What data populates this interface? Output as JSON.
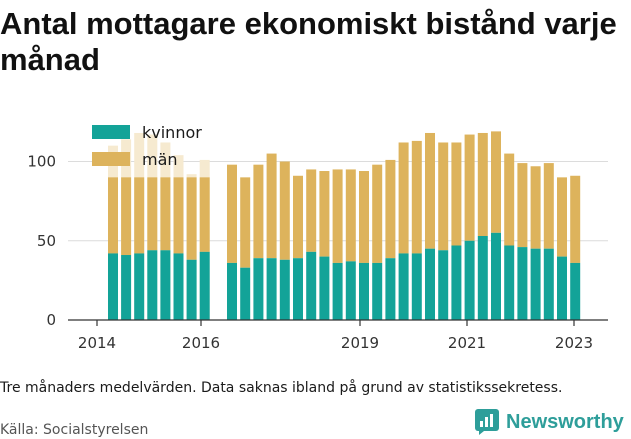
{
  "title": "Antal mottagare ekonomiskt bistånd varje månad",
  "note": "Tre månaders medelvärden. Data saknas ibland på grund av statistikssekretess.",
  "source": "Källa: Socialstyrelsen",
  "brand": "Newsworthy",
  "colors": {
    "kvinnor": "#13a398",
    "man": "#ddb35c",
    "faded": "#f6ead0",
    "grid": "#dcdcdc",
    "axis": "#333333",
    "brand": "#2e9e9a"
  },
  "chart_data": {
    "type": "bar",
    "stacked": true,
    "ylim": [
      0,
      130
    ],
    "yticks": [
      0,
      50,
      100
    ],
    "x_tick_labels": [
      "2014",
      "2016",
      "2019",
      "2021",
      "2023"
    ],
    "legend_position": "top-left",
    "grid": true,
    "series": [
      {
        "name": "kvinnor",
        "values": [
          42,
          41,
          42,
          44,
          44,
          42,
          38,
          43,
          36,
          33,
          39,
          39,
          38,
          39,
          43,
          40,
          36,
          37,
          36,
          36,
          39,
          42,
          42,
          45,
          44,
          47,
          50,
          53,
          55,
          47,
          46,
          45,
          45,
          40,
          36
        ]
      },
      {
        "name": "män",
        "values": [
          48,
          49,
          48,
          46,
          46,
          48,
          52,
          47,
          62,
          57,
          59,
          66,
          62,
          52,
          52,
          54,
          59,
          58,
          58,
          62,
          62,
          70,
          71,
          73,
          68,
          65,
          67,
          65,
          64,
          58,
          53,
          52,
          54,
          50,
          55
        ]
      }
    ],
    "faded_overlay_totals": [
      110,
      114,
      118,
      117,
      112,
      104,
      92,
      101
    ]
  }
}
